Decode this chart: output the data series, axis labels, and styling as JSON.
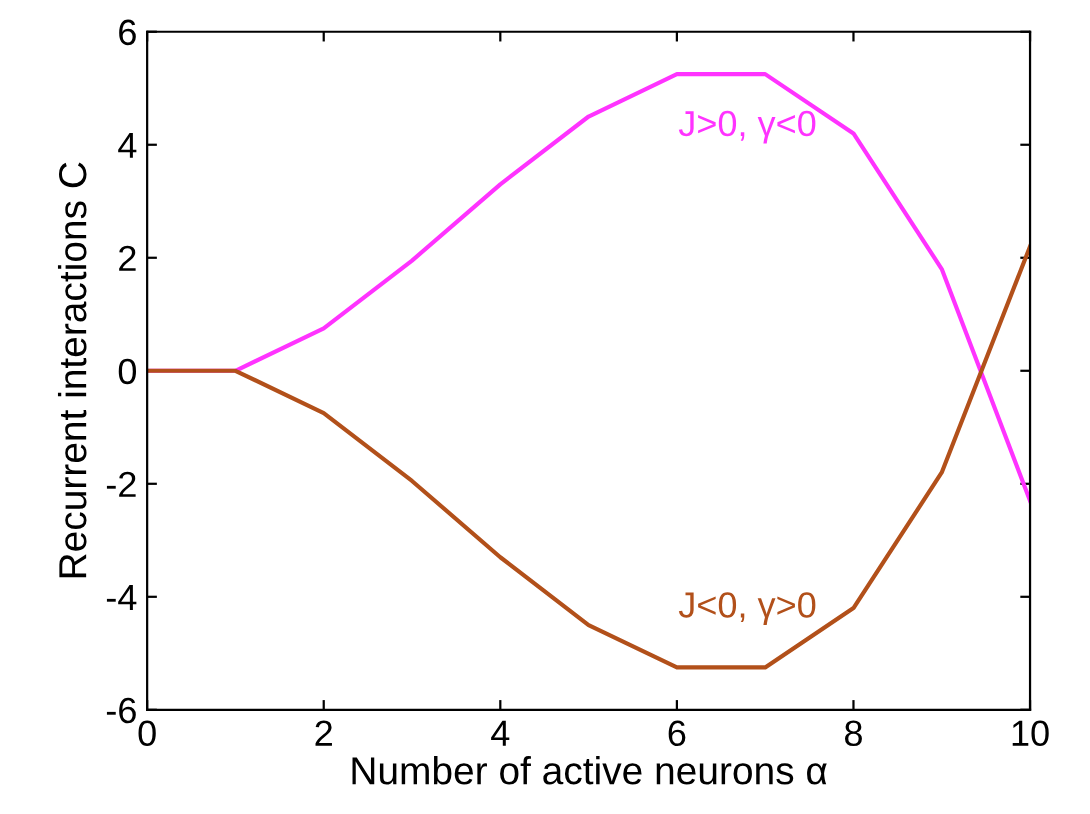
{
  "chart_data": {
    "type": "line",
    "xlabel": "Number of active neurons α",
    "ylabel": "Recurrent interactions C",
    "x": [
      0,
      1,
      2,
      3,
      4,
      5,
      6,
      7,
      8,
      9,
      10
    ],
    "series": [
      {
        "name": "J>0, γ<0",
        "color": "#ff33ff",
        "values": [
          0,
          0,
          0.75,
          1.95,
          3.3,
          4.5,
          5.25,
          5.25,
          4.2,
          1.8,
          -2.3
        ]
      },
      {
        "name": "J<0, γ>0",
        "color": "#b2501a",
        "values": [
          0,
          0,
          -0.75,
          -1.95,
          -3.3,
          -4.5,
          -5.25,
          -5.25,
          -4.2,
          -1.8,
          2.2
        ]
      }
    ],
    "xlim": [
      0,
      10
    ],
    "ylim": [
      -6,
      6
    ],
    "xticks": [
      0,
      2,
      4,
      6,
      8,
      10
    ],
    "yticks": [
      -6,
      -4,
      -2,
      0,
      2,
      4,
      6
    ],
    "grid": false,
    "legend": false,
    "marker": "none",
    "line_style": "solid"
  }
}
